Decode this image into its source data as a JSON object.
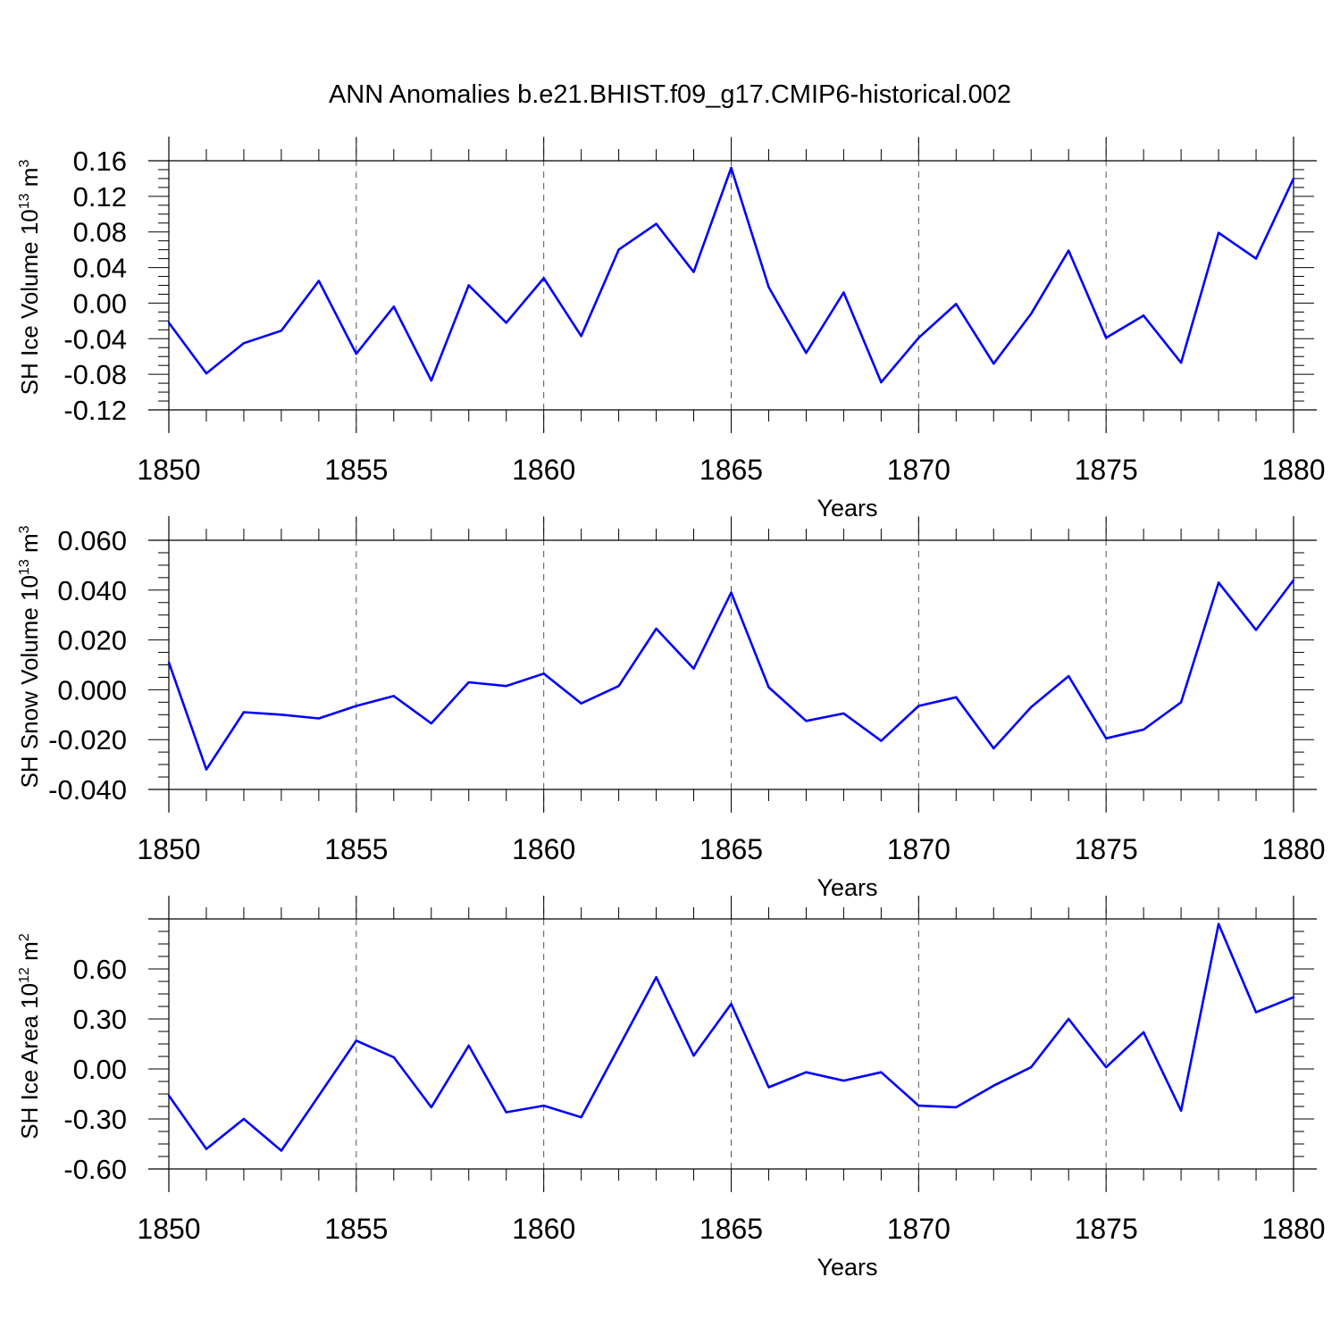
{
  "title": "ANN Anomalies b.e21.BHIST.f09_g17.CMIP6-historical.002",
  "chart_data": [
    {
      "type": "line",
      "title": "",
      "xlabel": "Years",
      "ylabel": {
        "prefix": "SH Ice Volume 10",
        "exp1": "13",
        "mid": " m",
        "exp2": "3"
      },
      "color": "#0000ff",
      "xlim": [
        1850,
        1880
      ],
      "ylim": [
        -0.12,
        0.16
      ],
      "grid": "vertical-dashed",
      "xticks": [
        "1850",
        "1855",
        "1860",
        "1865",
        "1870",
        "1875",
        "1880"
      ],
      "yticks": [
        "-0.12",
        "-0.08",
        "-0.04",
        "0.00",
        "0.04",
        "0.08",
        "0.12",
        "0.16"
      ],
      "x": [
        1850,
        1851,
        1852,
        1853,
        1854,
        1855,
        1856,
        1857,
        1858,
        1859,
        1860,
        1861,
        1862,
        1863,
        1864,
        1865,
        1866,
        1867,
        1868,
        1869,
        1870,
        1871,
        1872,
        1873,
        1874,
        1875,
        1876,
        1877,
        1878,
        1879,
        1880
      ],
      "values": [
        -0.022,
        -0.079,
        -0.045,
        -0.031,
        0.025,
        -0.057,
        -0.004,
        -0.087,
        0.02,
        -0.022,
        0.028,
        -0.037,
        0.06,
        0.089,
        0.035,
        0.152,
        0.018,
        -0.056,
        0.012,
        -0.089,
        -0.039,
        -0.001,
        -0.068,
        -0.012,
        0.059,
        -0.039,
        -0.014,
        -0.067,
        0.079,
        0.05,
        0.14
      ]
    },
    {
      "type": "line",
      "title": "",
      "xlabel": "Years",
      "ylabel": {
        "prefix": "SH Snow Volume 10",
        "exp1": "13",
        "mid": " m",
        "exp2": "3"
      },
      "color": "#0000ff",
      "xlim": [
        1850,
        1880
      ],
      "ylim": [
        -0.04,
        0.06
      ],
      "grid": "vertical-dashed",
      "xticks": [
        "1850",
        "1855",
        "1860",
        "1865",
        "1870",
        "1875",
        "1880"
      ],
      "yticks": [
        "-0.040",
        "-0.020",
        "0.000",
        "0.020",
        "0.040",
        "0.060"
      ],
      "x": [
        1850,
        1851,
        1852,
        1853,
        1854,
        1855,
        1856,
        1857,
        1858,
        1859,
        1860,
        1861,
        1862,
        1863,
        1864,
        1865,
        1866,
        1867,
        1868,
        1869,
        1870,
        1871,
        1872,
        1873,
        1874,
        1875,
        1876,
        1877,
        1878,
        1879,
        1880
      ],
      "values": [
        0.011,
        -0.032,
        -0.009,
        -0.01,
        -0.0115,
        -0.0065,
        -0.0025,
        -0.0135,
        0.003,
        0.0015,
        0.0065,
        -0.0055,
        0.0015,
        0.0245,
        0.0085,
        0.039,
        0.001,
        -0.0125,
        -0.0095,
        -0.0205,
        -0.0065,
        -0.003,
        -0.0235,
        -0.007,
        0.0055,
        -0.0195,
        -0.016,
        -0.005,
        0.043,
        0.024,
        0.044
      ]
    },
    {
      "type": "line",
      "title": "",
      "xlabel": "Years",
      "ylabel": {
        "prefix": "SH Ice Area 10",
        "exp1": "12",
        "mid": " m",
        "exp2": "2"
      },
      "color": "#0000ff",
      "xlim": [
        1850,
        1880
      ],
      "ylim": [
        -0.6,
        0.9
      ],
      "grid": "vertical-dashed",
      "xticks": [
        "1850",
        "1855",
        "1860",
        "1865",
        "1870",
        "1875",
        "1880"
      ],
      "yticks": [
        "-0.60",
        "-0.30",
        "0.00",
        "0.30",
        "0.60"
      ],
      "ytick_values": [
        -0.6,
        -0.3,
        0.0,
        0.3,
        0.6
      ],
      "x": [
        1850,
        1851,
        1852,
        1853,
        1854,
        1855,
        1856,
        1857,
        1858,
        1859,
        1860,
        1861,
        1862,
        1863,
        1864,
        1865,
        1866,
        1867,
        1868,
        1869,
        1870,
        1871,
        1872,
        1873,
        1874,
        1875,
        1876,
        1877,
        1878,
        1879,
        1880
      ],
      "values": [
        -0.16,
        -0.48,
        -0.3,
        -0.49,
        -0.16,
        0.17,
        0.07,
        -0.23,
        0.14,
        -0.26,
        -0.22,
        -0.29,
        0.13,
        0.55,
        0.08,
        0.39,
        -0.11,
        -0.02,
        -0.07,
        -0.02,
        -0.22,
        -0.23,
        -0.1,
        0.01,
        0.3,
        0.01,
        0.22,
        -0.25,
        0.87,
        0.34,
        0.43
      ]
    }
  ]
}
